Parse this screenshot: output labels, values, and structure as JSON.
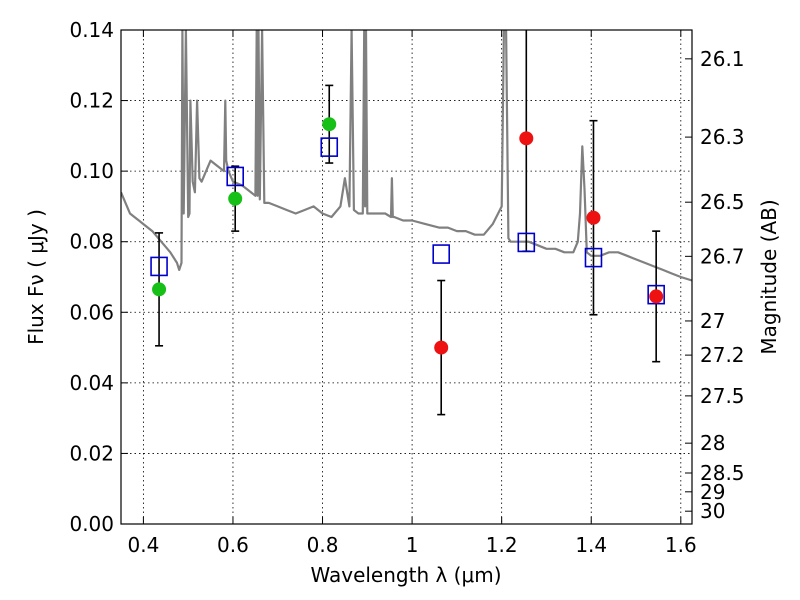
{
  "chart_data": {
    "type": "scatter",
    "xlabel": "Wavelength  λ (μm)",
    "ylabel": "Flux  Fν  ( μJy )",
    "ylabel_right": "Magnitude (AB)",
    "xlim": [
      0.35,
      1.625
    ],
    "ylim": [
      0.0,
      0.14
    ],
    "grid": true,
    "x_ticks": [
      0.4,
      0.6,
      0.8,
      1.0,
      1.2,
      1.4,
      1.6
    ],
    "x_tick_labels": [
      "0.4",
      "0.6",
      "0.8",
      "1",
      "1.2",
      "1.4",
      "1.6"
    ],
    "y_ticks": [
      0.0,
      0.02,
      0.04,
      0.06,
      0.08,
      0.1,
      0.12,
      0.14
    ],
    "y_tick_labels": [
      "0.00",
      "0.02",
      "0.04",
      "0.06",
      "0.08",
      "0.10",
      "0.12",
      "0.14"
    ],
    "mag_ticks": [
      26.1,
      26.3,
      26.5,
      26.7,
      27,
      27.2,
      27.5,
      28,
      28.5,
      29,
      30
    ],
    "mag_tick_labels": [
      "26.1",
      "26.3",
      "26.5",
      "26.7",
      "27",
      "27.2",
      "27.5",
      "28",
      "28.5",
      "29",
      "30"
    ],
    "colors": {
      "model": "#808080",
      "green": "#16c016",
      "red": "#ee1111",
      "square": "#0000cc",
      "errorbar": "#000000"
    },
    "series": [
      {
        "name": "model-spectrum",
        "kind": "line",
        "x": [
          0.35,
          0.36,
          0.37,
          0.38,
          0.39,
          0.4,
          0.42,
          0.44,
          0.46,
          0.475,
          0.48,
          0.485,
          0.487,
          0.49,
          0.495,
          0.5,
          0.503,
          0.505,
          0.51,
          0.515,
          0.52,
          0.525,
          0.53,
          0.54,
          0.55,
          0.56,
          0.57,
          0.58,
          0.583,
          0.585,
          0.59,
          0.6,
          0.62,
          0.64,
          0.65,
          0.653,
          0.655,
          0.657,
          0.66,
          0.665,
          0.67,
          0.68,
          0.7,
          0.72,
          0.74,
          0.76,
          0.78,
          0.8,
          0.82,
          0.84,
          0.85,
          0.86,
          0.865,
          0.87,
          0.88,
          0.89,
          0.893,
          0.895,
          0.897,
          0.9,
          0.92,
          0.94,
          0.953,
          0.955,
          0.957,
          0.96,
          0.98,
          1.0,
          1.03,
          1.06,
          1.08,
          1.1,
          1.12,
          1.14,
          1.16,
          1.18,
          1.2,
          1.205,
          1.21,
          1.215,
          1.22,
          1.24,
          1.26,
          1.28,
          1.3,
          1.32,
          1.34,
          1.36,
          1.37,
          1.375,
          1.38,
          1.385,
          1.39,
          1.4,
          1.42,
          1.44,
          1.46,
          1.48,
          1.5,
          1.52,
          1.54,
          1.56,
          1.58,
          1.6,
          1.625
        ],
        "y": [
          0.094,
          0.091,
          0.088,
          0.087,
          0.086,
          0.085,
          0.083,
          0.08,
          0.077,
          0.074,
          0.072,
          0.074,
          0.14,
          0.088,
          0.14,
          0.087,
          0.088,
          0.12,
          0.097,
          0.094,
          0.12,
          0.098,
          0.097,
          0.1,
          0.103,
          0.102,
          0.101,
          0.1,
          0.12,
          0.103,
          0.1,
          0.097,
          0.096,
          0.094,
          0.093,
          0.14,
          0.093,
          0.14,
          0.092,
          0.14,
          0.091,
          0.091,
          0.09,
          0.089,
          0.088,
          0.089,
          0.09,
          0.088,
          0.087,
          0.09,
          0.098,
          0.09,
          0.14,
          0.089,
          0.088,
          0.088,
          0.14,
          0.09,
          0.14,
          0.088,
          0.088,
          0.088,
          0.087,
          0.098,
          0.087,
          0.087,
          0.086,
          0.086,
          0.085,
          0.084,
          0.084,
          0.083,
          0.083,
          0.082,
          0.082,
          0.085,
          0.09,
          0.14,
          0.14,
          0.081,
          0.08,
          0.08,
          0.08,
          0.079,
          0.078,
          0.078,
          0.077,
          0.077,
          0.08,
          0.088,
          0.107,
          0.095,
          0.077,
          0.076,
          0.076,
          0.077,
          0.077,
          0.076,
          0.075,
          0.074,
          0.073,
          0.072,
          0.071,
          0.07,
          0.069
        ]
      },
      {
        "name": "green-points",
        "kind": "circle",
        "x": [
          0.435,
          0.605,
          0.815
        ],
        "y": [
          0.0665,
          0.0922,
          0.1133
        ],
        "err": [
          0.016,
          0.0092,
          0.011
        ]
      },
      {
        "name": "red-points",
        "kind": "circle",
        "x": [
          1.065,
          1.255,
          1.405,
          1.545
        ],
        "y": [
          0.05,
          0.1093,
          0.0868,
          0.0645
        ],
        "err": [
          0.019,
          0.032,
          0.0275,
          0.0185
        ]
      },
      {
        "name": "model-band-squares",
        "kind": "square",
        "x": [
          0.435,
          0.605,
          0.815,
          1.065,
          1.255,
          1.405,
          1.545
        ],
        "y": [
          0.073,
          0.0985,
          0.1068,
          0.0765,
          0.0798,
          0.0755,
          0.065
        ]
      }
    ]
  }
}
